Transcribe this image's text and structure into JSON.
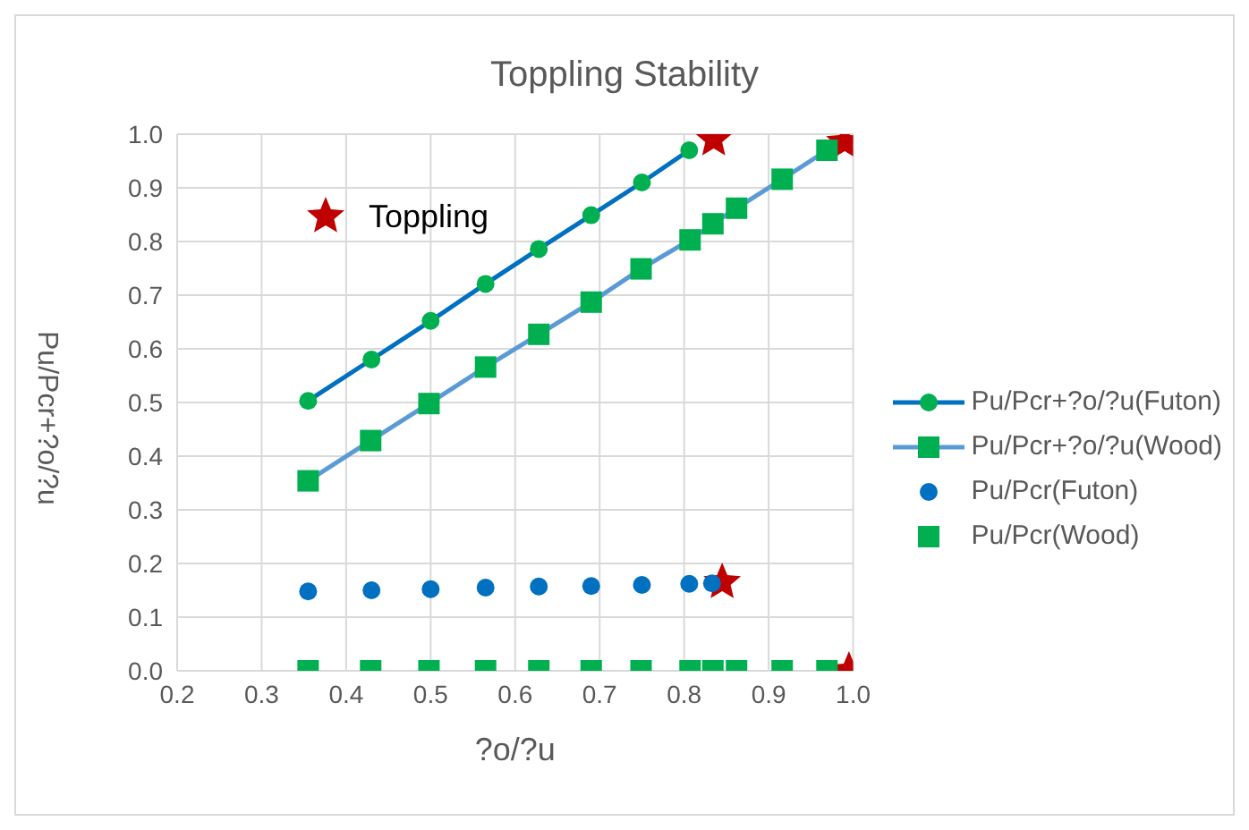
{
  "chart_data": {
    "type": "scatter",
    "title": "Toppling Stability",
    "xlabel": "?o/?u",
    "ylabel": "Pu/Pcr+?o/?u",
    "xlim": [
      0.2,
      1.0
    ],
    "xticks": [
      0.2,
      0.3,
      0.4,
      0.5,
      0.6,
      0.7,
      0.8,
      0.9,
      {
        "value": 1,
        "label": "1.0"
      }
    ],
    "ylim": [
      0,
      1.0
    ],
    "yticks": [
      {
        "value": 0,
        "label": "0.0"
      },
      0.1,
      0.2,
      0.3,
      0.4,
      0.5,
      0.6,
      0.7,
      0.8,
      0.9,
      {
        "value": 1,
        "label": "1.0"
      }
    ],
    "grid": true,
    "legend": "right",
    "line_style": "solid",
    "series": [
      {
        "name": "Pu/Pcr+?o/?u(Futon)",
        "type": "line",
        "marker": "circle",
        "color": "#0070c0",
        "colors": [
          "#00b050",
          "#00b050",
          "#00b050",
          "#00b050",
          "#00b050",
          "#00b050",
          "#00b050",
          "#00b050"
        ],
        "x": [
          0.355,
          0.43,
          0.5,
          0.565,
          0.628,
          0.69,
          0.75,
          0.806
        ],
        "values": [
          0.503,
          0.58,
          0.652,
          0.721,
          0.786,
          0.849,
          0.91,
          0.97
        ]
      },
      {
        "name": "Pu/Pcr+?o/?u(Wood)",
        "type": "line",
        "marker": "square",
        "color": "#5b9bd5",
        "colors": [
          "#00b050",
          "#00b050",
          "#00b050",
          "#00b050",
          "#00b050",
          "#00b050",
          "#00b050",
          "#00b050",
          "#00b050",
          "#00b050",
          "#00b050",
          "#00b050"
        ],
        "x": [
          0.355,
          0.429,
          0.498,
          0.565,
          0.628,
          0.69,
          0.749,
          0.807,
          0.834,
          0.862,
          0.916,
          0.969
        ],
        "values": [
          0.354,
          0.429,
          0.498,
          0.566,
          0.627,
          0.687,
          0.749,
          0.803,
          0.833,
          0.862,
          0.916,
          0.97
        ]
      },
      {
        "name": "Pu/Pcr(Futon)",
        "type": "scatter",
        "marker": "circle",
        "color": "#0070c0",
        "x": [
          0.355,
          0.43,
          0.5,
          0.565,
          0.628,
          0.69,
          0.75,
          0.806,
          0.833
        ],
        "values": [
          0.148,
          0.15,
          0.152,
          0.155,
          0.157,
          0.158,
          0.16,
          0.162,
          0.163
        ]
      },
      {
        "name": "Pu/Pcr(Wood)",
        "type": "scatter",
        "marker": "square",
        "color": "#00b050",
        "x": [
          0.355,
          0.429,
          0.498,
          0.565,
          0.628,
          0.69,
          0.749,
          0.807,
          0.834,
          0.862,
          0.916,
          0.969
        ],
        "values": [
          0,
          0,
          0,
          0,
          0,
          0,
          0,
          0,
          0,
          0,
          0,
          0
        ]
      },
      {
        "name": "Toppling",
        "type": "scatter",
        "marker": "star",
        "color": "#c00000",
        "x": [
          0.835,
          0.99,
          0.845,
          0.995
        ],
        "values": [
          0.99,
          0.985,
          0.165,
          0
        ]
      }
    ]
  }
}
